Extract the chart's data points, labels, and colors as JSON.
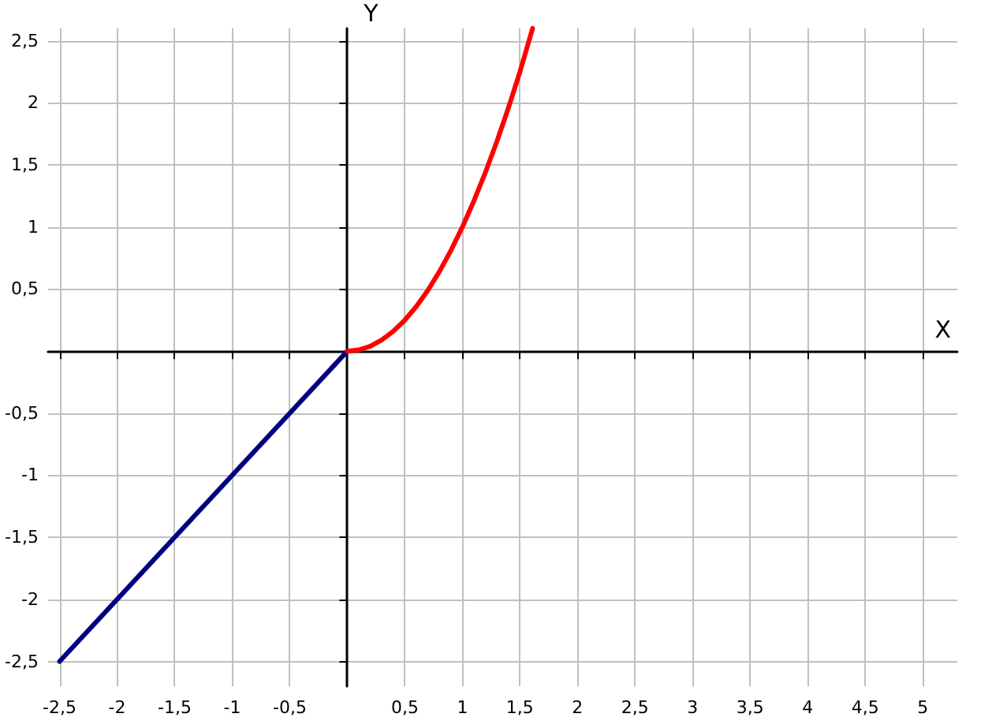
{
  "chart_data": {
    "type": "line",
    "xlabel": "X",
    "ylabel": "Y",
    "xlim": [
      -2.6,
      5.3
    ],
    "ylim": [
      -2.7,
      2.6
    ],
    "xticks": [
      {
        "value": -2.5,
        "label": "-2,5"
      },
      -2,
      {
        "value": -1.5,
        "label": "-1,5"
      },
      -1,
      {
        "value": -0.5,
        "label": "-0,5"
      },
      {
        "value": 0.5,
        "label": "0,5"
      },
      1,
      {
        "value": 1.5,
        "label": "1,5"
      },
      2,
      {
        "value": 2.5,
        "label": "2,5"
      },
      3,
      {
        "value": 3.5,
        "label": "3,5"
      },
      4,
      {
        "value": 4.5,
        "label": "4,5"
      },
      5
    ],
    "yticks": [
      {
        "value": -2.5,
        "label": "-2,5"
      },
      -2,
      {
        "value": -1.5,
        "label": "-1,5"
      },
      -1,
      {
        "value": -0.5,
        "label": "-0,5"
      },
      {
        "value": 0.5,
        "label": "0,5"
      },
      1,
      {
        "value": 1.5,
        "label": "1,5"
      },
      2,
      {
        "value": 2.5,
        "label": "2,5"
      }
    ],
    "grid": true,
    "marker": "none",
    "line_style": "solid",
    "series": [
      {
        "color": "#000080",
        "x": [
          -2.5,
          0
        ],
        "values": [
          -2.5,
          0
        ]
      },
      {
        "color": "#ff0000",
        "x": [
          0,
          0.1,
          0.2,
          0.3,
          0.4,
          0.5,
          0.6,
          0.7,
          0.8,
          0.9,
          1,
          1.1,
          1.2,
          1.3,
          1.4,
          1.5,
          1.61
        ],
        "values": [
          0,
          0.01,
          0.04,
          0.09,
          0.16,
          0.25,
          0.36,
          0.49,
          0.64,
          0.81,
          1,
          1.21,
          1.44,
          1.69,
          1.96,
          2.25,
          2.6
        ]
      }
    ]
  }
}
